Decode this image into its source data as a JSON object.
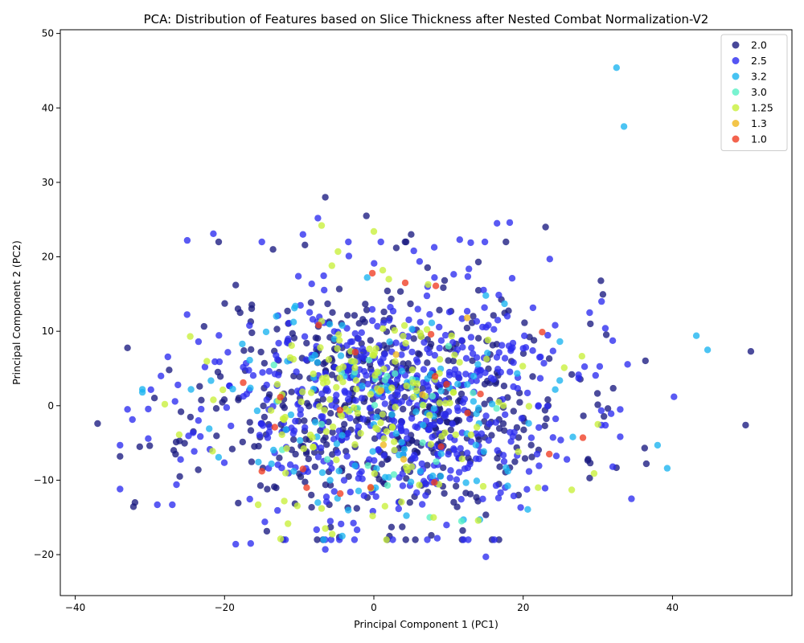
{
  "chart_data": {
    "type": "scatter",
    "title": "PCA: Distribution of Features based on Slice Thickness after Nested Combat Normalization-V2",
    "xlabel": "Principal Component 1 (PC1)",
    "ylabel": "Principal Component 2 (PC2)",
    "xlim": [
      -42,
      56
    ],
    "ylim": [
      -25.5,
      50.5
    ],
    "xticks": [
      -40,
      -20,
      0,
      20,
      40
    ],
    "yticks": [
      -20,
      -10,
      0,
      10,
      20,
      30,
      40,
      50
    ],
    "grid": false,
    "legend_position": "top-right",
    "point_count_note": "",
    "series": [
      {
        "name": "2.0",
        "color": "#1a1a80",
        "seed": 11,
        "count": 520,
        "sx": 12.5,
        "sy": 8.2,
        "cx": 1.5,
        "cy": 0.5,
        "points": [
          [
            -37,
            -2.4
          ],
          [
            -34,
            -6.8
          ],
          [
            -32,
            -13
          ],
          [
            -6.5,
            28
          ],
          [
            -1,
            25.5
          ],
          [
            23,
            24
          ],
          [
            5,
            23
          ],
          [
            50.5,
            7.3
          ],
          [
            49.8,
            -2.6
          ],
          [
            36.5,
            -7.8
          ],
          [
            29,
            11
          ],
          [
            26.5,
            4.2
          ],
          [
            -18.5,
            16.2
          ],
          [
            -13.5,
            21
          ],
          [
            3,
            21.2
          ],
          [
            14,
            19.3
          ],
          [
            -26,
            -9.5
          ]
        ]
      },
      {
        "name": "2.5",
        "color": "#2b2bf0",
        "seed": 23,
        "count": 560,
        "sx": 12.5,
        "sy": 8.2,
        "cx": 1.5,
        "cy": 0.3,
        "points": [
          [
            -25,
            22.2
          ],
          [
            -21.5,
            23.1
          ],
          [
            -15,
            22
          ],
          [
            -9.5,
            23
          ],
          [
            -7.5,
            25.2
          ],
          [
            16.5,
            24.5
          ],
          [
            18.2,
            24.6
          ],
          [
            11.5,
            22.3
          ],
          [
            40.2,
            1.2
          ],
          [
            34.5,
            -12.5
          ],
          [
            33,
            -0.5
          ],
          [
            32,
            -8.2
          ],
          [
            30.5,
            14
          ],
          [
            31,
            10.4
          ],
          [
            -34,
            -5.3
          ],
          [
            -34,
            -11.2
          ],
          [
            -18.5,
            -18.6
          ],
          [
            -16.5,
            -18.5
          ],
          [
            15,
            -20.3
          ],
          [
            8.5,
            -17.8
          ],
          [
            -6.5,
            -19.3
          ],
          [
            -29,
            -13.3
          ],
          [
            -27,
            -13.3
          ]
        ]
      },
      {
        "name": "3.2",
        "color": "#19b4ef",
        "seed": 37,
        "count": 120,
        "sx": 11,
        "sy": 7.5,
        "cx": 1.5,
        "cy": -1,
        "points": [
          [
            32.5,
            45.4
          ],
          [
            33.5,
            37.5
          ],
          [
            43.2,
            9.4
          ],
          [
            44.7,
            7.5
          ],
          [
            38,
            -5.3
          ],
          [
            39.3,
            -8.4
          ],
          [
            -31,
            2.2
          ],
          [
            -31,
            1.8
          ],
          [
            17.5,
            13.7
          ],
          [
            15,
            14.8
          ]
        ]
      },
      {
        "name": "3.0",
        "color": "#57f0c4",
        "seed": 41,
        "count": 25,
        "sx": 9,
        "sy": 6,
        "cx": 1.5,
        "cy": -1.5,
        "points": [
          [
            7.5,
            -15
          ],
          [
            5,
            2.5
          ],
          [
            10,
            8
          ]
        ]
      },
      {
        "name": "1.25",
        "color": "#c8f03a",
        "seed": 53,
        "count": 150,
        "sx": 10,
        "sy": 7.5,
        "cx": 0.5,
        "cy": 0,
        "points": [
          [
            -7,
            24.2
          ],
          [
            0,
            23.4
          ],
          [
            -4.8,
            20.7
          ],
          [
            1.2,
            18.2
          ],
          [
            2,
            17
          ],
          [
            -6.5,
            -16.5
          ],
          [
            -7,
            -13.8
          ],
          [
            -15.5,
            -13.3
          ],
          [
            -12,
            -12.8
          ],
          [
            25.5,
            5.1
          ],
          [
            30,
            -2.5
          ],
          [
            29.5,
            -9.1
          ],
          [
            26.5,
            -11.3
          ],
          [
            22,
            -11
          ],
          [
            -28,
            0.2
          ]
        ]
      },
      {
        "name": "1.3",
        "color": "#f0b71c",
        "seed": 67,
        "count": 3,
        "sx": 4,
        "sy": 4,
        "cx": 5,
        "cy": 0,
        "points": [
          [
            12.5,
            11.8
          ],
          [
            6.5,
            1.5
          ],
          [
            4,
            -7.2
          ]
        ]
      },
      {
        "name": "1.0",
        "color": "#f03c22",
        "seed": 79,
        "count": 12,
        "sx": 10,
        "sy": 8,
        "cx": 2,
        "cy": 0,
        "points": [
          [
            8.3,
            16.1
          ],
          [
            4.2,
            16.5
          ],
          [
            -0.2,
            17.8
          ],
          [
            28,
            -4.3
          ],
          [
            23.5,
            -6.5
          ],
          [
            -15,
            -8.8
          ],
          [
            -9,
            -11
          ],
          [
            -4.5,
            -11.8
          ],
          [
            -9.5,
            -8.5
          ],
          [
            -2.5,
            7.2
          ],
          [
            9,
            -5.5
          ],
          [
            -17.5,
            3.1
          ]
        ]
      }
    ]
  }
}
